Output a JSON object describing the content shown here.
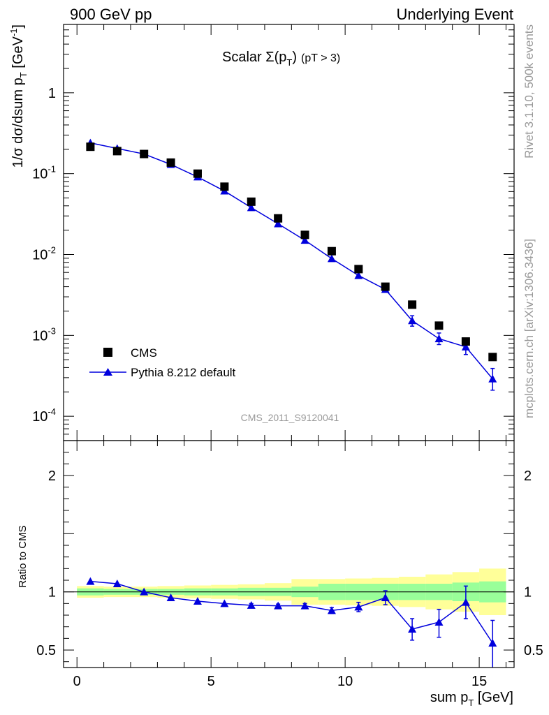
{
  "header": {
    "left": "900 GeV pp",
    "right": "Underlying Event"
  },
  "side_labels": {
    "rivet": "Rivet 3.1.10,  500k events",
    "mcplots": "mcplots.cern.ch [arXiv:1306.3436]"
  },
  "chart_data": {
    "type": "scatter",
    "title": "Scalar Σ(p_T) (pT >  3)",
    "title_parts": {
      "main": "Scalar Σ(p",
      "sub": "T",
      "close": ")",
      "cut": "(pT >  3)"
    },
    "analysis_id": "CMS_2011_S9120041",
    "xlabel": "sum p_T [GeV]",
    "xlabel_parts": {
      "main": "sum p",
      "sub": "T",
      "unit": " [GeV]"
    },
    "ylabel": "1/σ dσ/dsum p_T [GeV^-1]",
    "ylabel_parts": {
      "main": "1/σ dσ/dsum p",
      "sub": "T",
      "unit": " [GeV",
      "sup": "-1",
      "close": "]"
    },
    "xlim": [
      -0.5,
      16.3
    ],
    "ylim": [
      5e-05,
      7
    ],
    "yscale": "log",
    "x_ticks": [
      0,
      5,
      10,
      15
    ],
    "x_tick_labels": [
      "0",
      "5",
      "10",
      "15"
    ],
    "y_ticks": [
      1,
      0.1,
      0.01,
      0.001,
      0.0001
    ],
    "y_tick_labels": [
      "1",
      "10^-1",
      "10^-2",
      "10^-3",
      "10^-4"
    ],
    "legend": {
      "position": "bottom-left",
      "entries": [
        "CMS",
        "Pythia 8.212 default"
      ]
    },
    "series": [
      {
        "name": "CMS",
        "marker": "square",
        "color": "#000000",
        "x": [
          0.5,
          1.5,
          2.5,
          3.5,
          4.5,
          5.5,
          6.5,
          7.5,
          8.5,
          9.5,
          10.5,
          11.5,
          12.5,
          13.5,
          14.5,
          15.5
        ],
        "values": [
          0.215,
          0.19,
          0.175,
          0.137,
          0.1,
          0.069,
          0.045,
          0.028,
          0.0175,
          0.011,
          0.0066,
          0.004,
          0.0024,
          0.00132,
          0.00084,
          0.00054
        ]
      },
      {
        "name": "Pythia 8.212 default",
        "marker": "triangle",
        "color": "#0000dd",
        "x": [
          0.5,
          1.5,
          2.5,
          3.5,
          4.5,
          5.5,
          6.5,
          7.5,
          8.5,
          9.5,
          10.5,
          11.5,
          12.5,
          13.5,
          14.5,
          15.5
        ],
        "values": [
          0.24,
          0.205,
          0.175,
          0.13,
          0.091,
          0.061,
          0.038,
          0.024,
          0.015,
          0.0089,
          0.0055,
          0.0037,
          0.00152,
          0.00091,
          0.00072,
          0.00029
        ],
        "err_low": [
          0.24,
          0.205,
          0.175,
          0.13,
          0.091,
          0.061,
          0.038,
          0.024,
          0.015,
          0.0089,
          0.0055,
          0.0037,
          0.0013,
          0.00077,
          0.00058,
          0.00021
        ],
        "err_high": [
          0.24,
          0.205,
          0.175,
          0.13,
          0.091,
          0.061,
          0.038,
          0.024,
          0.015,
          0.0089,
          0.0055,
          0.0037,
          0.00175,
          0.00107,
          0.00088,
          0.00039
        ]
      }
    ],
    "ratio": {
      "ylabel": "Ratio to CMS",
      "ylim": [
        0.35,
        2.3
      ],
      "y_ticks": [
        0.5,
        1,
        2
      ],
      "y_tick_labels": [
        "0.5",
        "1",
        "2"
      ],
      "reference": 1,
      "values": [
        1.09,
        1.07,
        1.0,
        0.95,
        0.92,
        0.9,
        0.885,
        0.88,
        0.88,
        0.84,
        0.87,
        0.95,
        0.68,
        0.74,
        0.91,
        0.56
      ],
      "err_low": [
        1.09,
        1.07,
        1.0,
        0.95,
        0.92,
        0.9,
        0.87,
        0.865,
        0.86,
        0.815,
        0.83,
        0.89,
        0.585,
        0.61,
        0.77,
        0.35
      ],
      "err_high": [
        1.09,
        1.07,
        1.0,
        0.95,
        0.92,
        0.9,
        0.9,
        0.895,
        0.9,
        0.865,
        0.91,
        1.01,
        0.77,
        0.85,
        1.05,
        0.755
      ],
      "band_edges": [
        -0.5,
        0.5,
        1.5,
        2.5,
        3.5,
        4.5,
        5.5,
        6.5,
        7.5,
        8.5,
        9.5,
        10.5,
        11.5,
        12.5,
        13.5,
        14.5,
        15.5
      ],
      "band_x": [
        0,
        1,
        2,
        3,
        4,
        5,
        6,
        7,
        8,
        9,
        10,
        11,
        12,
        13,
        14,
        15,
        16
      ],
      "inner_band": [
        0.03,
        0.025,
        0.025,
        0.025,
        0.03,
        0.03,
        0.035,
        0.035,
        0.045,
        0.07,
        0.07,
        0.07,
        0.07,
        0.07,
        0.08,
        0.09
      ],
      "outer_band": [
        0.05,
        0.045,
        0.045,
        0.05,
        0.055,
        0.06,
        0.065,
        0.075,
        0.11,
        0.11,
        0.115,
        0.12,
        0.13,
        0.15,
        0.17,
        0.2
      ],
      "inner_color": "#99ff99",
      "outer_color": "#ffff99"
    }
  }
}
